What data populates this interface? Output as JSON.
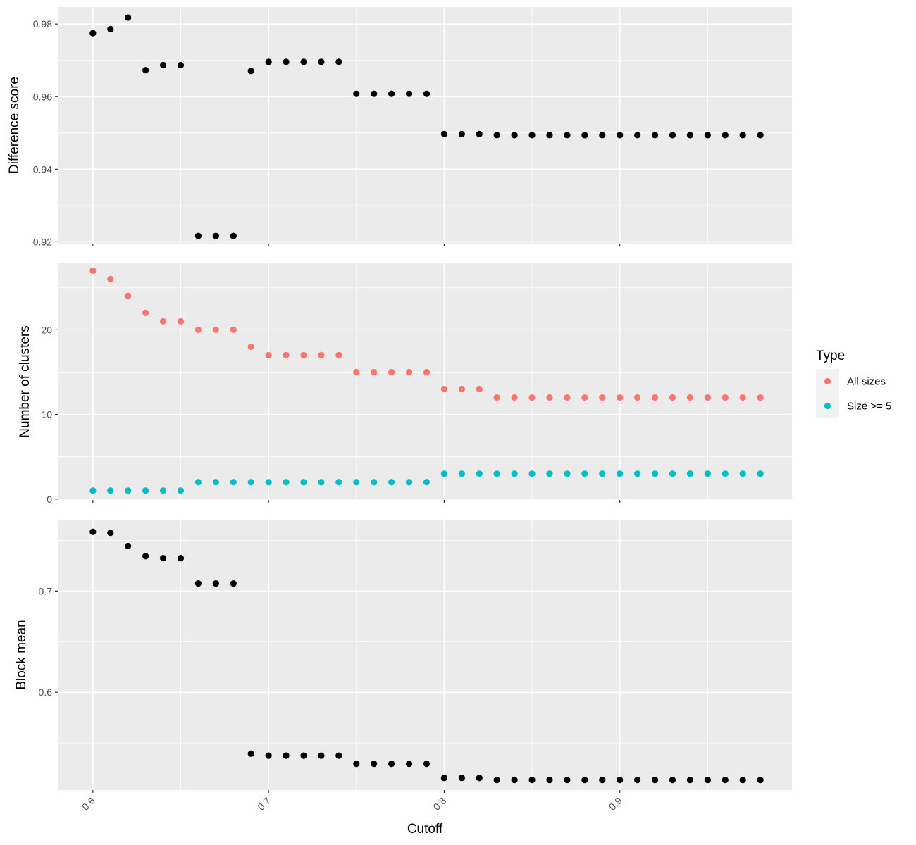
{
  "colors": {
    "panel_background": "#EBEBEB",
    "grid": "#FFFFFF",
    "point_black": "#000000",
    "all_sizes": "#F8766D",
    "size_ge_5": "#00BFC4"
  },
  "chart_data": {
    "type": "scatter",
    "xlabel": "Cutoff",
    "x_ticks": [
      0.6,
      0.7,
      0.8,
      0.9
    ],
    "x_tick_labels": [
      "0.6",
      "0.7",
      "0.8",
      "0.9"
    ],
    "xlim": [
      0.58,
      0.998
    ],
    "x": [
      0.6,
      0.61,
      0.62,
      0.63,
      0.64,
      0.65,
      0.66,
      0.67,
      0.68,
      0.69,
      0.7,
      0.71,
      0.72,
      0.73,
      0.74,
      0.75,
      0.76,
      0.77,
      0.78,
      0.79,
      0.8,
      0.81,
      0.82,
      0.83,
      0.84,
      0.85,
      0.86,
      0.87,
      0.88,
      0.89,
      0.9,
      0.91,
      0.92,
      0.93,
      0.94,
      0.95,
      0.96,
      0.97,
      0.98
    ],
    "panels": [
      {
        "ylabel": "Difference score",
        "ylim": [
          0.9195,
          0.9847
        ],
        "y_ticks": [
          0.92,
          0.94,
          0.96,
          0.98
        ],
        "y_tick_labels": [
          "0.92",
          "0.94",
          "0.96",
          "0.98"
        ],
        "series": [
          {
            "color": "#000000",
            "values": [
              0.9775,
              0.9786,
              0.9818,
              0.9673,
              0.9687,
              0.9687,
              0.9216,
              0.9216,
              0.9216,
              0.9671,
              0.9696,
              0.9696,
              0.9696,
              0.9696,
              0.9696,
              0.9608,
              0.9608,
              0.9608,
              0.9608,
              0.9608,
              0.9497,
              0.9497,
              0.9497,
              0.9494,
              0.9494,
              0.9494,
              0.9494,
              0.9494,
              0.9494,
              0.9494,
              0.9494,
              0.9494,
              0.9494,
              0.9494,
              0.9494,
              0.9494,
              0.9494,
              0.9494,
              0.9494
            ]
          }
        ]
      },
      {
        "ylabel": "Number of clusters",
        "ylim": [
          -0.1,
          27.85
        ],
        "y_ticks": [
          0,
          10,
          20
        ],
        "y_tick_labels": [
          "0",
          "10",
          "20"
        ],
        "series": [
          {
            "name": "All sizes",
            "color": "#F8766D",
            "values": [
              27,
              26,
              24,
              22,
              21,
              21,
              20,
              20,
              20,
              18,
              17,
              17,
              17,
              17,
              17,
              15,
              15,
              15,
              15,
              15,
              13,
              13,
              13,
              12,
              12,
              12,
              12,
              12,
              12,
              12,
              12,
              12,
              12,
              12,
              12,
              12,
              12,
              12,
              12
            ]
          },
          {
            "name": "Size >= 5",
            "color": "#00BFC4",
            "values": [
              1,
              1,
              1,
              1,
              1,
              1,
              2,
              2,
              2,
              2,
              2,
              2,
              2,
              2,
              2,
              2,
              2,
              2,
              2,
              2,
              3,
              3,
              3,
              3,
              3,
              3,
              3,
              3,
              3,
              3,
              3,
              3,
              3,
              3,
              3,
              3,
              3,
              3,
              3
            ]
          }
        ]
      },
      {
        "ylabel": "Block mean",
        "ylim": [
          0.5035,
          0.7705
        ],
        "y_ticks": [
          0.6,
          0.7
        ],
        "y_tick_labels": [
          "0.6",
          "0.7"
        ],
        "series": [
          {
            "color": "#000000",
            "values": [
              0.7585,
              0.7575,
              0.7445,
              0.7345,
              0.7325,
              0.7325,
              0.7075,
              0.7075,
              0.7075,
              0.5395,
              0.5375,
              0.5375,
              0.5375,
              0.5375,
              0.5375,
              0.5295,
              0.5295,
              0.5295,
              0.5295,
              0.5295,
              0.5155,
              0.5155,
              0.5155,
              0.5135,
              0.5135,
              0.5135,
              0.5135,
              0.5135,
              0.5135,
              0.5135,
              0.5135,
              0.5135,
              0.5135,
              0.5135,
              0.5135,
              0.5135,
              0.5135,
              0.5135,
              0.5135
            ]
          }
        ]
      }
    ],
    "legend": {
      "title": "Type",
      "placement": "right",
      "entries": [
        {
          "label": "All sizes",
          "color": "#F8766D"
        },
        {
          "label": "Size >= 5",
          "color": "#00BFC4"
        }
      ]
    }
  }
}
